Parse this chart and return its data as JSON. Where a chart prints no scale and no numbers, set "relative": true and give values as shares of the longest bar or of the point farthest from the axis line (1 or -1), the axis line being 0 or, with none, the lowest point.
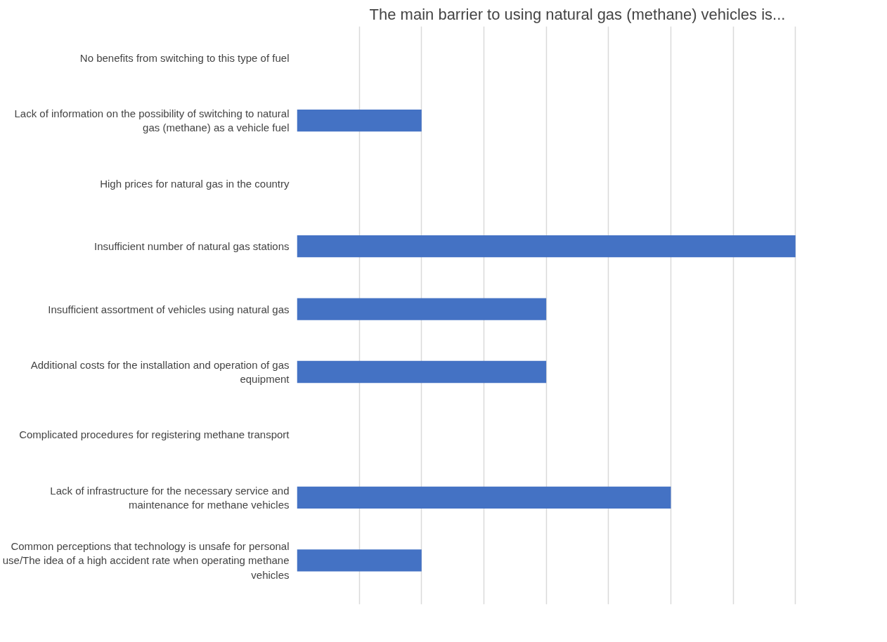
{
  "chart_data": {
    "type": "bar",
    "title": "The main barrier to using natural gas (methane) vehicles is...",
    "orientation": "horizontal",
    "relative": true,
    "grid": "x",
    "categories": [
      "No benefits from switching to this type of fuel",
      "Lack of information on the possibility of switching to natural gas (methane) as a vehicle fuel",
      "High prices for natural gas in the country",
      "Insufficient number of natural gas stations",
      "Insufficient assortment of vehicles using natural gas",
      "Additional costs for the installation and operation of gas equipment",
      "Complicated procedures for registering methane transport",
      "Lack of infrastructure for the necessary service and maintenance for methane vehicles",
      "Common perceptions that technology is unsafe for personal use/The idea of a high accident rate when operating methane vehicles"
    ],
    "series": [
      {
        "color": "#4472c4",
        "values": [
          0,
          0.25,
          0,
          1,
          0.5,
          0.5,
          0,
          0.75,
          0.25
        ]
      }
    ]
  }
}
